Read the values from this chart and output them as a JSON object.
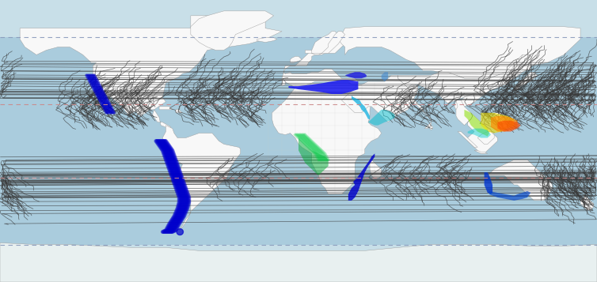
{
  "figsize": [
    7.54,
    3.57
  ],
  "dpi": 100,
  "ocean_color": "#aaccdd",
  "polar_ocean_color": "#c8dfe8",
  "antarctic_ice_color": "#e8f0f0",
  "land_color": "#f8f8f8",
  "country_border_color": "#cccccc",
  "land_border_color": "#999999",
  "storm_color": "#383838",
  "storm_alpha": 0.72,
  "storm_lw": 0.5,
  "tropic_cancer": 23.5,
  "tropic_capricorn": -23.5,
  "arctic": 66.5,
  "antarctic": -66.5,
  "lat_line_tropic_color": "#cc8888",
  "lat_line_arctic_color": "#8899bb",
  "xlim": [
    -180,
    180
  ],
  "ylim": [
    -90,
    90
  ]
}
